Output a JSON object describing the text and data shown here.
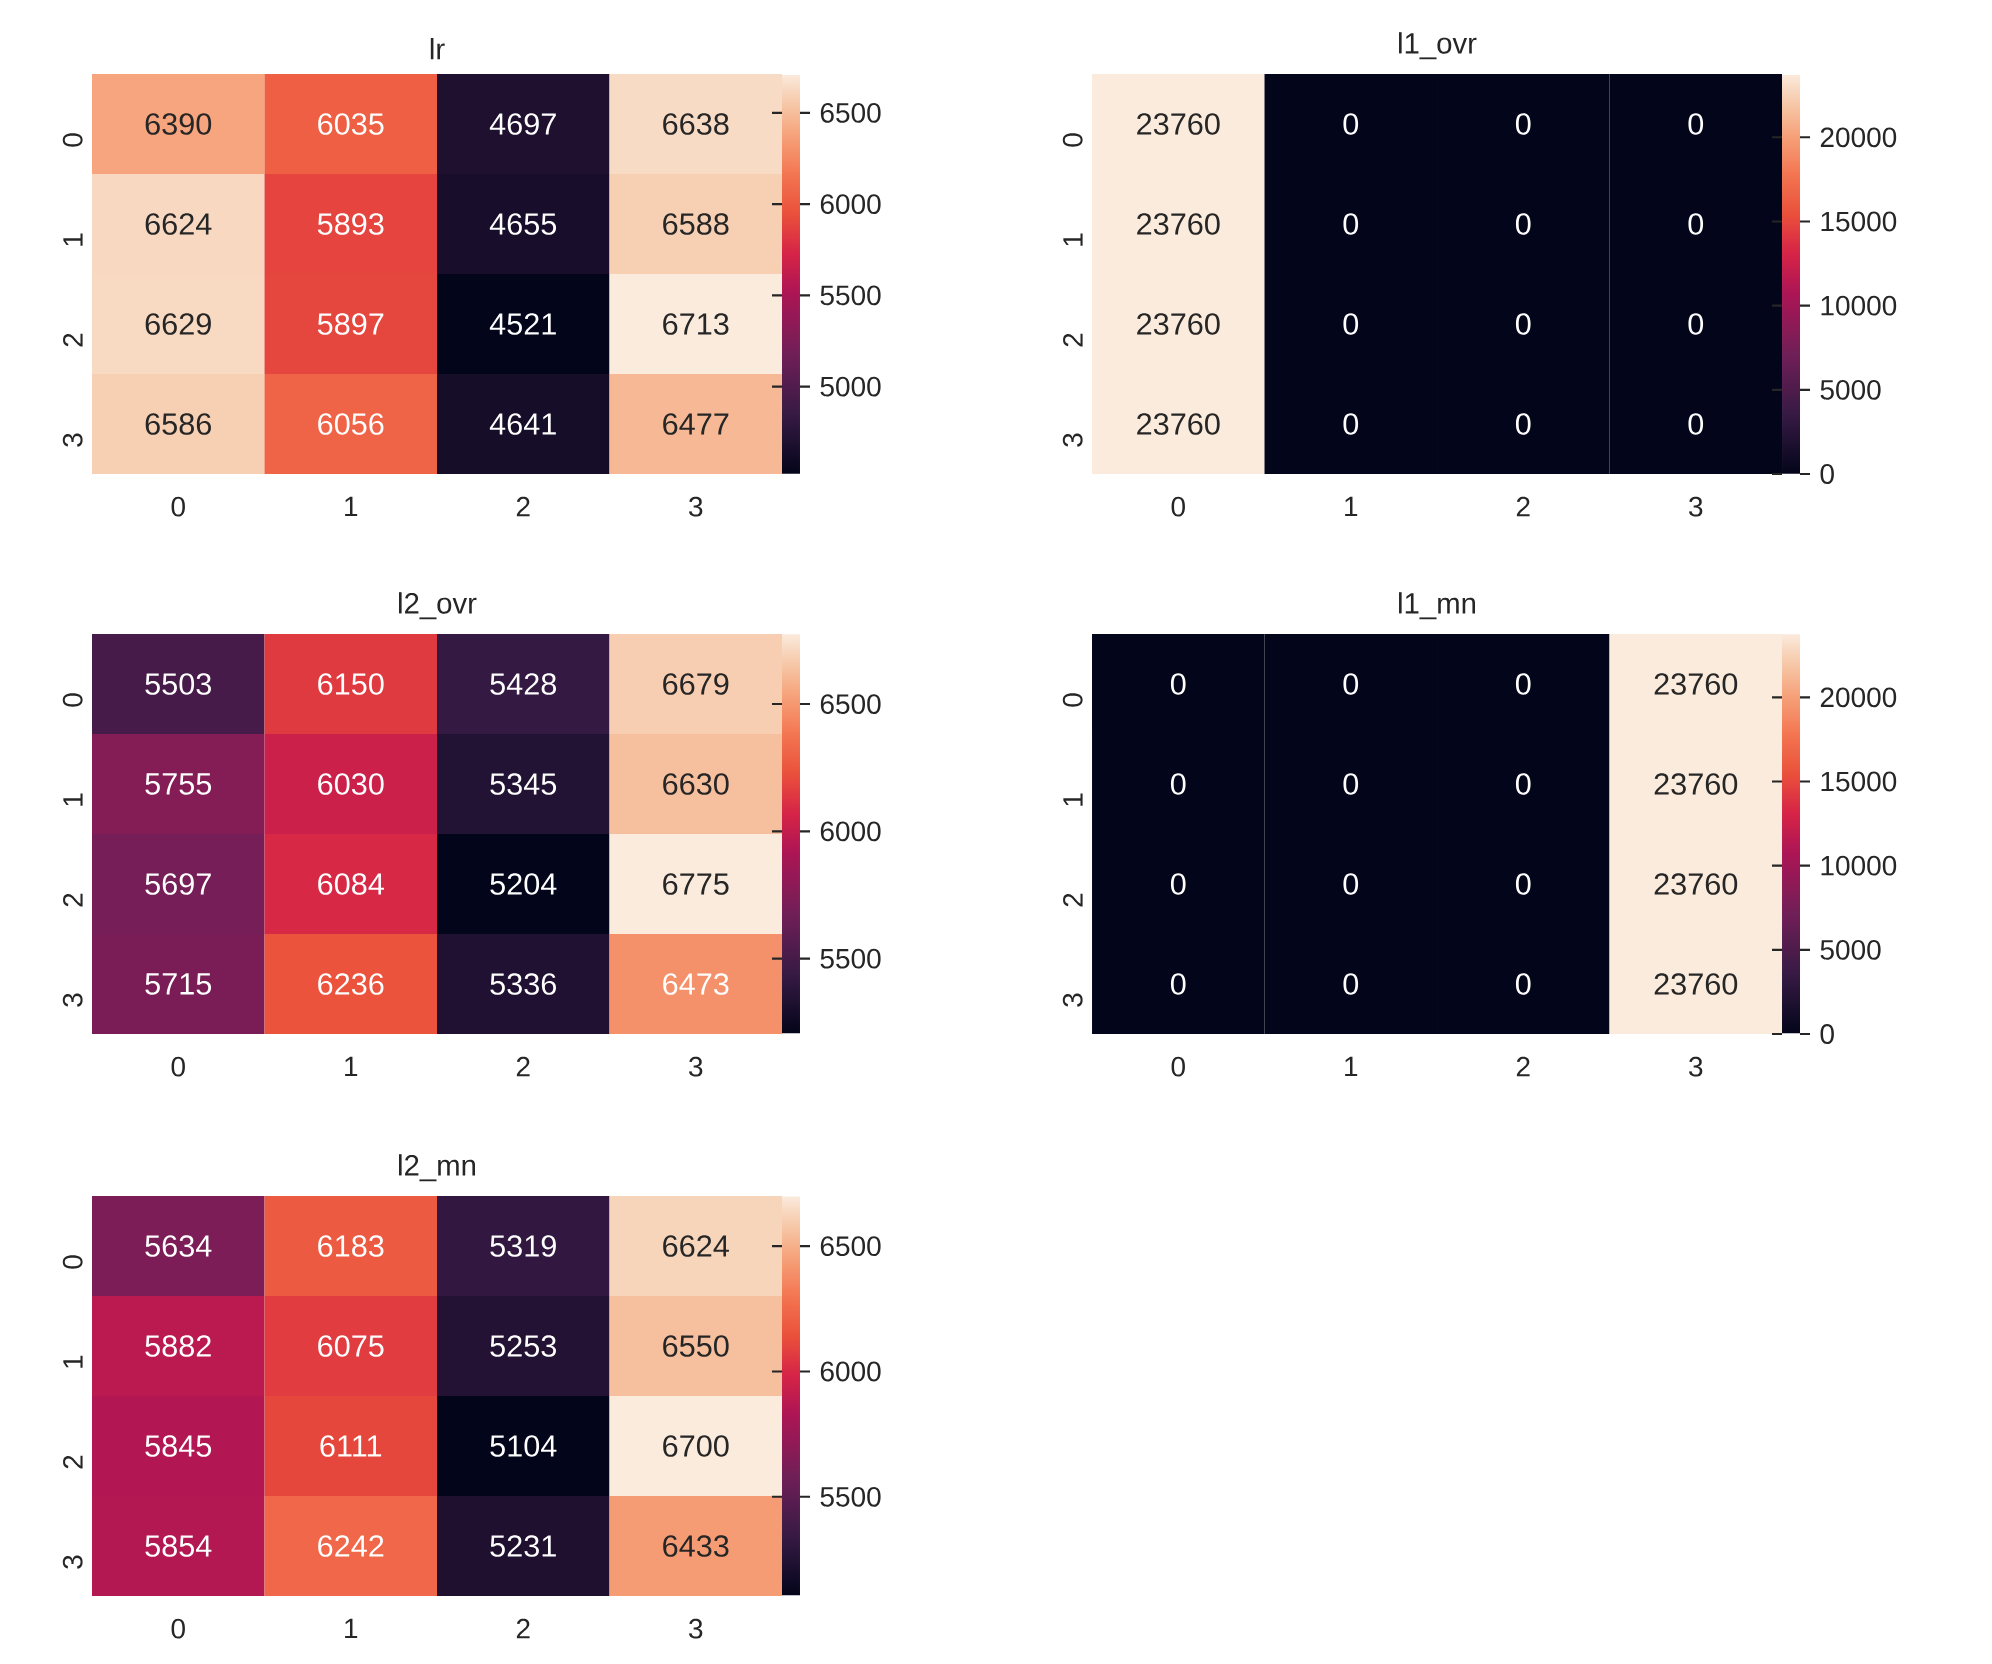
{
  "chart_data": [
    {
      "type": "heatmap",
      "title": "lr",
      "categories": [
        "0",
        "1",
        "2",
        "3"
      ],
      "y_categories": [
        "0",
        "1",
        "2",
        "3"
      ],
      "cells": [
        [
          6390,
          6035,
          4697,
          6638
        ],
        [
          6624,
          5893,
          4655,
          6588
        ],
        [
          6629,
          5897,
          4521,
          6713
        ],
        [
          6586,
          6056,
          4641,
          6477
        ]
      ],
      "clim": [
        4521,
        6713
      ],
      "cticks": [
        5000,
        5500,
        6000,
        6500
      ],
      "data_labels": true
    },
    {
      "type": "heatmap",
      "title": "l1_ovr",
      "categories": [
        "0",
        "1",
        "2",
        "3"
      ],
      "y_categories": [
        "0",
        "1",
        "2",
        "3"
      ],
      "cells": [
        [
          23760,
          0,
          0,
          0
        ],
        [
          23760,
          0,
          0,
          0
        ],
        [
          23760,
          0,
          0,
          0
        ],
        [
          23760,
          0,
          0,
          0
        ]
      ],
      "clim": [
        0,
        23760
      ],
      "cticks": [
        0,
        5000,
        10000,
        15000,
        20000
      ],
      "data_labels": true
    },
    {
      "type": "heatmap",
      "title": "l2_ovr",
      "categories": [
        "0",
        "1",
        "2",
        "3"
      ],
      "y_categories": [
        "0",
        "1",
        "2",
        "3"
      ],
      "cells": [
        [
          5503,
          6150,
          5428,
          6679
        ],
        [
          5755,
          6030,
          5345,
          6630
        ],
        [
          5697,
          6084,
          5204,
          6775
        ],
        [
          5715,
          6236,
          5336,
          6473
        ]
      ],
      "clim": [
        5204,
        6775
      ],
      "cticks": [
        5500,
        6000,
        6500
      ],
      "data_labels": true
    },
    {
      "type": "heatmap",
      "title": "l1_mn",
      "categories": [
        "0",
        "1",
        "2",
        "3"
      ],
      "y_categories": [
        "0",
        "1",
        "2",
        "3"
      ],
      "cells": [
        [
          0,
          0,
          0,
          23760
        ],
        [
          0,
          0,
          0,
          23760
        ],
        [
          0,
          0,
          0,
          23760
        ],
        [
          0,
          0,
          0,
          23760
        ]
      ],
      "clim": [
        0,
        23760
      ],
      "cticks": [
        0,
        5000,
        10000,
        15000,
        20000
      ],
      "data_labels": true
    },
    {
      "type": "heatmap",
      "title": "l2_mn",
      "categories": [
        "0",
        "1",
        "2",
        "3"
      ],
      "y_categories": [
        "0",
        "1",
        "2",
        "3"
      ],
      "cells": [
        [
          5634,
          6183,
          5319,
          6624
        ],
        [
          5882,
          6075,
          5253,
          6550
        ],
        [
          5845,
          6111,
          5104,
          6700
        ],
        [
          5854,
          6242,
          5231,
          6433
        ]
      ],
      "clim": [
        5104,
        6700
      ],
      "cticks": [
        5500,
        6000,
        6500
      ],
      "data_labels": true
    }
  ]
}
